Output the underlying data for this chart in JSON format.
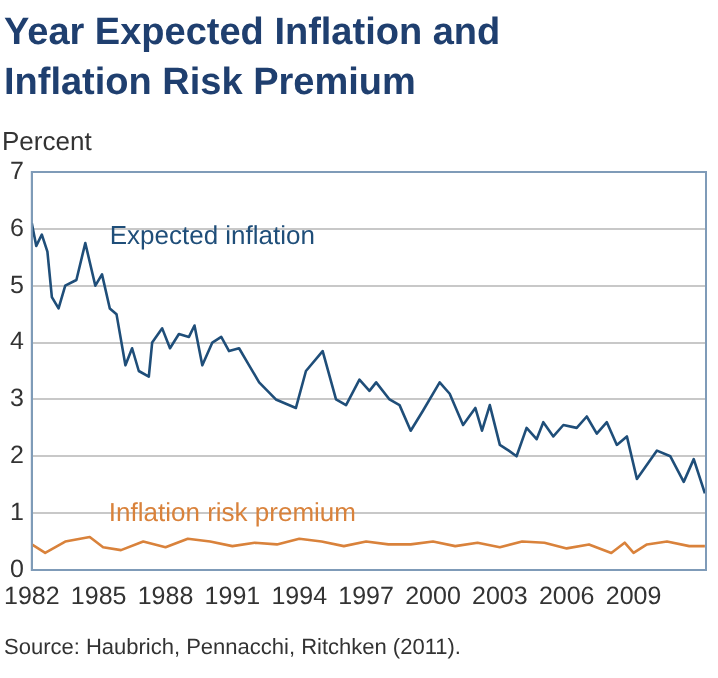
{
  "chart_data": {
    "type": "line",
    "title": "Year Expected Inflation and Inflation Risk Premium",
    "ylabel": "Percent",
    "annotations": [
      "Source: Haubrich, Pennacchi, Ritchken (2011)."
    ],
    "xlim": [
      1982,
      2012.25
    ],
    "xticks": [
      1982,
      1985,
      1988,
      1991,
      1994,
      1997,
      2000,
      2003,
      2006,
      2009
    ],
    "ylim": [
      0,
      7
    ],
    "yticks": [
      0,
      1,
      2,
      3,
      4,
      5,
      6,
      7
    ],
    "grid": "y",
    "legend": false,
    "marker": "none",
    "line_style": "solid",
    "series": [
      {
        "name": "Expected inflation",
        "color": "#1f4e79",
        "x": [
          1982.0,
          1982.2,
          1982.45,
          1982.7,
          1982.9,
          1983.2,
          1983.5,
          1984.0,
          1984.4,
          1984.85,
          1985.15,
          1985.5,
          1985.8,
          1986.2,
          1986.5,
          1986.8,
          1987.25,
          1987.4,
          1987.85,
          1988.2,
          1988.6,
          1989.05,
          1989.3,
          1989.65,
          1990.1,
          1990.5,
          1990.85,
          1991.3,
          1991.75,
          1992.2,
          1992.95,
          1993.85,
          1994.3,
          1995.05,
          1995.65,
          1996.1,
          1996.7,
          1997.15,
          1997.45,
          1998.05,
          1998.5,
          1999.0,
          1999.55,
          2000.3,
          2000.75,
          2001.35,
          2001.9,
          2002.2,
          2002.55,
          2003.0,
          2003.4,
          2003.75,
          2004.2,
          2004.65,
          2004.95,
          2005.4,
          2005.85,
          2006.45,
          2006.9,
          2007.35,
          2007.8,
          2008.25,
          2008.7,
          2009.15,
          2009.6,
          2010.05,
          2010.65,
          2011.25,
          2011.7,
          2012.2
        ],
        "values": [
          6.1,
          5.7,
          5.9,
          5.6,
          4.8,
          4.6,
          5.0,
          5.1,
          5.75,
          5.0,
          5.2,
          4.6,
          4.5,
          3.6,
          3.9,
          3.5,
          3.4,
          4.0,
          4.25,
          3.9,
          4.15,
          4.1,
          4.3,
          3.6,
          4.0,
          4.1,
          3.85,
          3.9,
          3.6,
          3.3,
          3.0,
          2.85,
          3.5,
          3.85,
          3.0,
          2.9,
          3.35,
          3.15,
          3.3,
          3.0,
          2.9,
          2.45,
          2.8,
          3.3,
          3.1,
          2.55,
          2.85,
          2.45,
          2.9,
          2.2,
          2.1,
          2.0,
          2.5,
          2.3,
          2.6,
          2.35,
          2.55,
          2.5,
          2.7,
          2.4,
          2.6,
          2.2,
          2.35,
          1.6,
          1.85,
          2.1,
          2.0,
          1.55,
          1.95,
          1.35
        ]
      },
      {
        "name": "Inflation risk premium",
        "color": "#d9823b",
        "x": [
          1982.0,
          1982.6,
          1983.5,
          1984.6,
          1985.2,
          1986.0,
          1987.0,
          1988.0,
          1989.0,
          1990.0,
          1991.0,
          1992.0,
          1993.0,
          1994.0,
          1995.0,
          1996.0,
          1997.0,
          1998.0,
          1999.0,
          2000.0,
          2001.0,
          2002.0,
          2003.0,
          2004.0,
          2005.0,
          2006.0,
          2007.0,
          2008.0,
          2008.6,
          2009.0,
          2009.6,
          2010.5,
          2011.5,
          2012.2
        ],
        "values": [
          0.45,
          0.3,
          0.5,
          0.58,
          0.4,
          0.35,
          0.5,
          0.4,
          0.55,
          0.5,
          0.42,
          0.48,
          0.45,
          0.55,
          0.5,
          0.42,
          0.5,
          0.45,
          0.45,
          0.5,
          0.42,
          0.48,
          0.4,
          0.5,
          0.48,
          0.38,
          0.45,
          0.3,
          0.48,
          0.3,
          0.45,
          0.5,
          0.42,
          0.42
        ]
      }
    ]
  }
}
